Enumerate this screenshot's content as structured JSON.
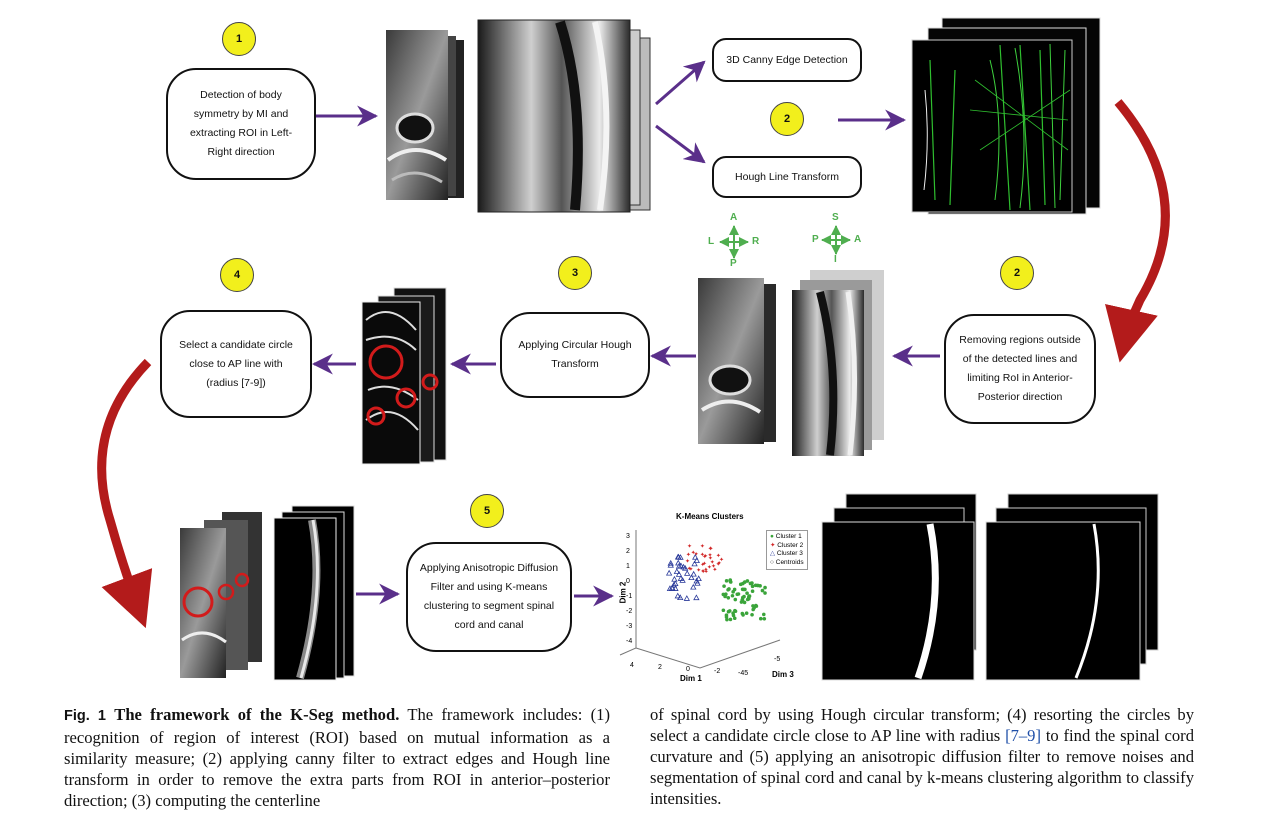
{
  "steps": {
    "s1": {
      "number": "1",
      "label": "Detection of body symmetry by MI and extracting ROI in Left-Right direction"
    },
    "s2a": {
      "number": "2",
      "canny": "3D Canny Edge Detection",
      "hough": "Hough Line Transform"
    },
    "s2b": {
      "number": "2",
      "label": "Removing regions outside of the detected lines and limiting RoI in Anterior- Posterior direction"
    },
    "s3": {
      "number": "3",
      "label": "Applying Circular Hough Transform"
    },
    "s4": {
      "number": "4",
      "label": "Select a candidate circle close to AP line with (radius [7-9])"
    },
    "s5": {
      "number": "5",
      "label": "Applying Anisotropic Diffusion Filter and using K-means clustering to segment spinal cord and canal"
    }
  },
  "orientation": {
    "axial": {
      "top": "A",
      "bottom": "P",
      "left": "L",
      "right": "R"
    },
    "sagittal": {
      "top": "S",
      "bottom": "I",
      "left": "P",
      "right": "A"
    }
  },
  "kmeans_plot": {
    "title": "K-Means Clusters",
    "legend": [
      "Cluster 1",
      "Cluster 2",
      "Cluster 3",
      "Centroids"
    ],
    "colors": {
      "cluster1": "#3aa43a",
      "cluster2": "#d22a2a",
      "cluster3": "#2a3a9a"
    },
    "xlabel": "Dim 1",
    "ylabel": "Dim 2",
    "zlabel": "Dim 3",
    "yticks": [
      "3",
      "2",
      "1",
      "0",
      "-1",
      "-2",
      "-3",
      "-4"
    ],
    "xticks": [
      "4",
      "2",
      "0",
      "-2"
    ],
    "zticks": [
      "-45",
      "-5"
    ]
  },
  "caption": {
    "fig_label": "Fig. 1",
    "fig_title": "The framework of the K-Seg method.",
    "left_text": "The framework includes: (1) recognition of region of interest (ROI) based on mutual information as a similarity measure; (2) applying canny filter to extract edges and Hough line transform in order to remove the extra parts from ROI in anterior–posterior direction; (3) computing the centerline",
    "right_pre": "of spinal cord by using Hough circular transform; (4) resorting the circles by select a candidate circle close to AP line with radius",
    "right_cite": "[7–9]",
    "right_post": "to find the spinal cord curvature and (5) applying an anisotropic diffusion filter to remove noises and segmentation of spinal cord and canal by k-means clustering algorithm to classify intensities."
  }
}
